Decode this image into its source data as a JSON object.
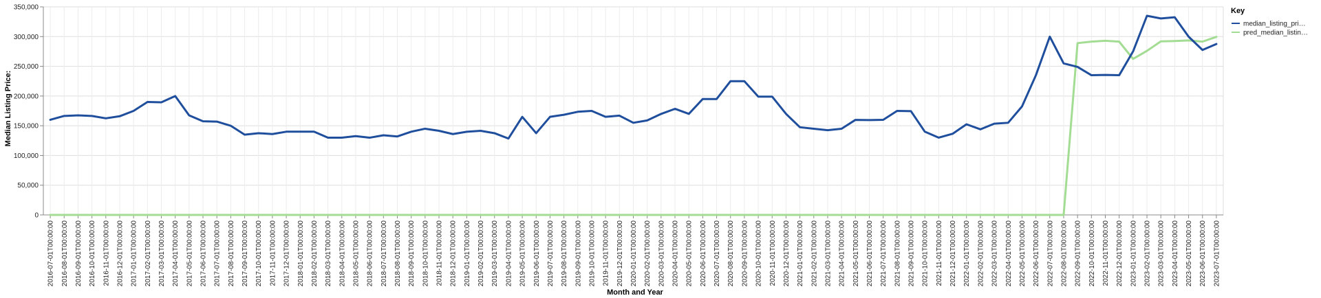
{
  "chart_data": {
    "type": "line",
    "xlabel": "Month and Year",
    "ylabel": "Median Listing Price:",
    "ylim": [
      0,
      350000
    ],
    "y_ticks": [
      "0",
      "50,000",
      "100,000",
      "150,000",
      "200,000",
      "250,000",
      "300,000",
      "350,000"
    ],
    "grid": true,
    "legend_title": "Key",
    "legend_position": "top-right",
    "categories": [
      "2016-07-01T00:00:00",
      "2016-08-01T00:00:00",
      "2016-09-01T00:00:00",
      "2016-10-01T00:00:00",
      "2016-11-01T00:00:00",
      "2016-12-01T00:00:00",
      "2017-01-01T00:00:00",
      "2017-02-01T00:00:00",
      "2017-03-01T00:00:00",
      "2017-04-01T00:00:00",
      "2017-05-01T00:00:00",
      "2017-06-01T00:00:00",
      "2017-07-01T00:00:00",
      "2017-08-01T00:00:00",
      "2017-09-01T00:00:00",
      "2017-10-01T00:00:00",
      "2017-11-01T00:00:00",
      "2017-12-01T00:00:00",
      "2018-01-01T00:00:00",
      "2018-02-01T00:00:00",
      "2018-03-01T00:00:00",
      "2018-04-01T00:00:00",
      "2018-05-01T00:00:00",
      "2018-06-01T00:00:00",
      "2018-07-01T00:00:00",
      "2018-08-01T00:00:00",
      "2018-09-01T00:00:00",
      "2018-10-01T00:00:00",
      "2018-11-01T00:00:00",
      "2018-12-01T00:00:00",
      "2019-01-01T00:00:00",
      "2019-02-01T00:00:00",
      "2019-03-01T00:00:00",
      "2019-04-01T00:00:00",
      "2019-05-01T00:00:00",
      "2019-06-01T00:00:00",
      "2019-07-01T00:00:00",
      "2019-08-01T00:00:00",
      "2019-09-01T00:00:00",
      "2019-10-01T00:00:00",
      "2019-11-01T00:00:00",
      "2019-12-01T00:00:00",
      "2020-01-01T00:00:00",
      "2020-02-01T00:00:00",
      "2020-03-01T00:00:00",
      "2020-04-01T00:00:00",
      "2020-05-01T00:00:00",
      "2020-06-01T00:00:00",
      "2020-07-01T00:00:00",
      "2020-08-01T00:00:00",
      "2020-09-01T00:00:00",
      "2020-10-01T00:00:00",
      "2020-11-01T00:00:00",
      "2020-12-01T00:00:00",
      "2021-01-01T00:00:00",
      "2021-02-01T00:00:00",
      "2021-03-01T00:00:00",
      "2021-04-01T00:00:00",
      "2021-05-01T00:00:00",
      "2021-06-01T00:00:00",
      "2021-07-01T00:00:00",
      "2021-08-01T00:00:00",
      "2021-09-01T00:00:00",
      "2021-10-01T00:00:00",
      "2021-11-01T00:00:00",
      "2021-12-01T00:00:00",
      "2022-01-01T00:00:00",
      "2022-02-01T00:00:00",
      "2022-03-01T00:00:00",
      "2022-04-01T00:00:00",
      "2022-05-01T00:00:00",
      "2022-06-01T00:00:00",
      "2022-07-01T00:00:00",
      "2022-08-01T00:00:00",
      "2022-09-01T00:00:00",
      "2022-10-01T00:00:00",
      "2022-11-01T00:00:00",
      "2022-12-01T00:00:00",
      "2023-01-01T00:00:00",
      "2023-02-01T00:00:00",
      "2023-03-01T00:00:00",
      "2023-04-01T00:00:00",
      "2023-05-01T00:00:00",
      "2023-06-01T00:00:00",
      "2023-07-01T00:00:00"
    ],
    "series": [
      {
        "name": "median_listing_price",
        "legend_label": "median_listing_pri…",
        "color": "#1f4e9c",
        "values": [
          160000,
          166500,
          167500,
          166500,
          162500,
          166000,
          175000,
          190000,
          189500,
          200000,
          167500,
          157500,
          157000,
          150000,
          135000,
          137500,
          136000,
          140000,
          140000,
          140000,
          129900,
          130000,
          132500,
          129900,
          134000,
          132000,
          140000,
          145000,
          141500,
          136000,
          139900,
          141500,
          137500,
          128500,
          165000,
          137500,
          165000,
          168500,
          173500,
          175000,
          165000,
          167000,
          155000,
          159000,
          169900,
          178500,
          170000,
          195000,
          195000,
          225000,
          225000,
          199000,
          199000,
          170000,
          147500,
          145000,
          142500,
          145000,
          159900,
          159500,
          160000,
          175000,
          174500,
          140000,
          130000,
          136500,
          152500,
          144000,
          153500,
          155000,
          182500,
          235000,
          299900,
          254900,
          249000,
          235000,
          235500,
          235000,
          275000,
          335000,
          330500,
          332500,
          299900,
          277500,
          287500
        ]
      },
      {
        "name": "pred_median_listing_price",
        "legend_label": "pred_median_listin…",
        "color": "#a3dc93",
        "values": [
          0,
          0,
          0,
          0,
          0,
          0,
          0,
          0,
          0,
          0,
          0,
          0,
          0,
          0,
          0,
          0,
          0,
          0,
          0,
          0,
          0,
          0,
          0,
          0,
          0,
          0,
          0,
          0,
          0,
          0,
          0,
          0,
          0,
          0,
          0,
          0,
          0,
          0,
          0,
          0,
          0,
          0,
          0,
          0,
          0,
          0,
          0,
          0,
          0,
          0,
          0,
          0,
          0,
          0,
          0,
          0,
          0,
          0,
          0,
          0,
          0,
          0,
          0,
          0,
          0,
          0,
          0,
          0,
          0,
          0,
          0,
          0,
          0,
          0,
          289000,
          291500,
          293000,
          291500,
          262500,
          276000,
          292000,
          292500,
          293500,
          291500,
          299500
        ]
      }
    ]
  }
}
